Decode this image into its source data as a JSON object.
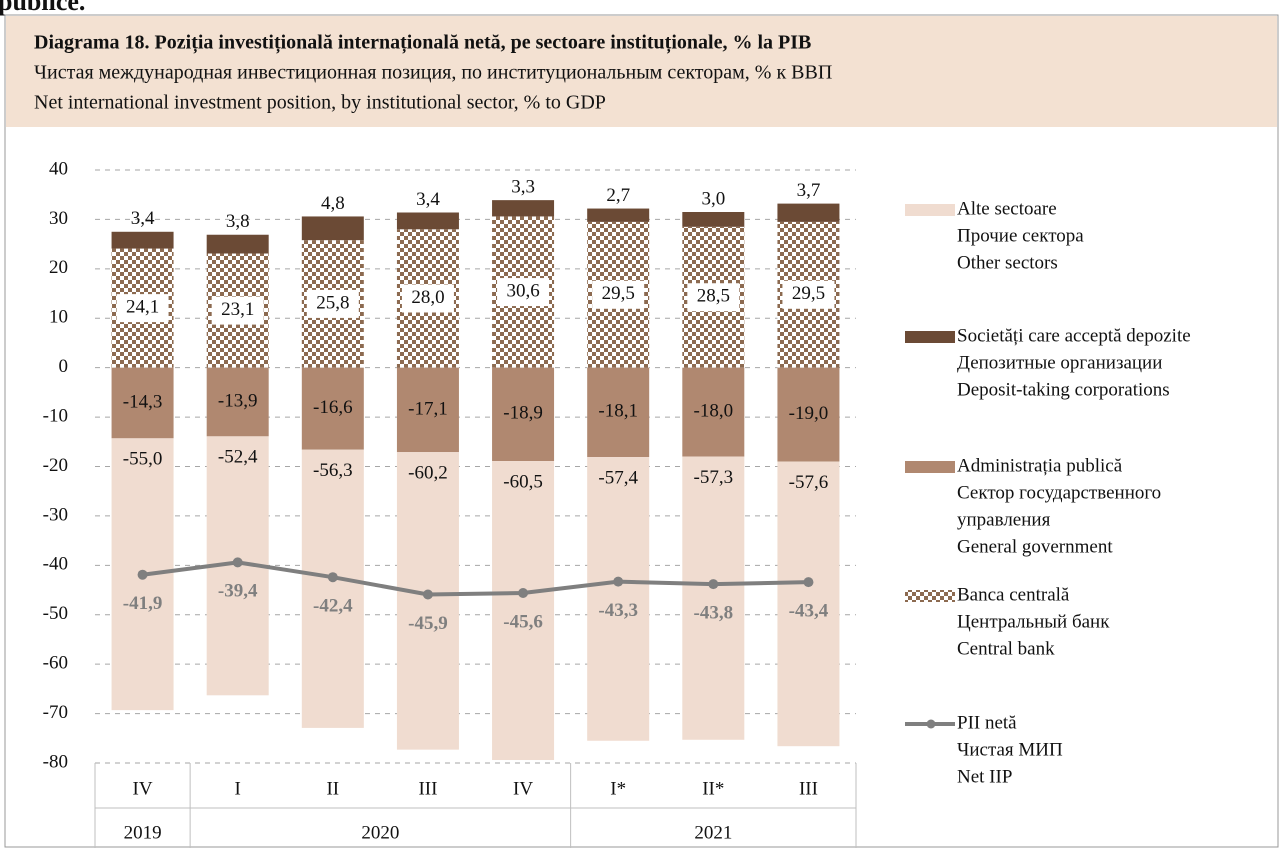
{
  "page_top_text": "publice.",
  "chart_data": {
    "type": "bar",
    "title": "Diagrama 18. Poziția investițională internațională netă, pe sectoare instituționale, % la PIB",
    "subtitle_ru": "Чистая международная инвестиционная позиция, по институциональным секторам, % к ВВП",
    "subtitle_en": "Net international investment position, by institutional sector, % to GDP",
    "categories": [
      "IV",
      "I",
      "II",
      "III",
      "IV",
      "I*",
      "II*",
      "III"
    ],
    "years": [
      "2019",
      "2020",
      null,
      null,
      null,
      "2021",
      null,
      null
    ],
    "ylim": [
      -80,
      40
    ],
    "yticks": [
      40,
      30,
      20,
      10,
      0,
      -10,
      -20,
      -30,
      -40,
      -50,
      -60,
      -70,
      -80
    ],
    "grid": true,
    "legend": "right",
    "series": [
      {
        "name": [
          "Alte sectoare",
          "Прочие сектора",
          "Other sectors"
        ],
        "color": "#f0dcd0",
        "values": [
          -55.0,
          -52.4,
          -56.3,
          -60.2,
          -60.5,
          -57.4,
          -57.3,
          -57.6
        ],
        "value_labels": [
          "-55,0",
          "-52,4",
          "-56,3",
          "-60,2",
          "-60,5",
          "-57,4",
          "-57,3",
          "-57,6"
        ]
      },
      {
        "name": [
          "Societăți care acceptă depozite",
          "Депозитные организации",
          "Deposit-taking corporations"
        ],
        "color": "#6b4a35",
        "values": [
          3.4,
          3.8,
          4.8,
          3.4,
          3.3,
          2.7,
          3.0,
          3.7
        ],
        "value_labels": [
          "3,4",
          "3,8",
          "4,8",
          "3,4",
          "3,3",
          "2,7",
          "3,0",
          "3,7"
        ]
      },
      {
        "name": [
          "Administrația publică",
          "Сектор государственного",
          "управления",
          "General government"
        ],
        "color": "#b08870",
        "values": [
          -14.3,
          -13.9,
          -16.6,
          -17.1,
          -18.9,
          -18.1,
          -18.0,
          -19.0
        ],
        "value_labels": [
          "-14,3",
          "-13,9",
          "-16,6",
          "-17,1",
          "-18,9",
          "-18,1",
          "-18,0",
          "-19,0"
        ]
      },
      {
        "name": [
          "Banca centrală",
          "Центральный банк",
          "Central bank"
        ],
        "color": "#8c6a50",
        "pattern": "checker",
        "values": [
          24.1,
          23.1,
          25.8,
          28.0,
          30.6,
          29.5,
          28.5,
          29.5
        ],
        "value_labels": [
          "24,1",
          "23,1",
          "25,8",
          "28,0",
          "30,6",
          "29,5",
          "28,5",
          "29,5"
        ]
      },
      {
        "name": [
          "PII netă",
          "Чистая МИП",
          "Net IIP"
        ],
        "color": "#7f7f7f",
        "type": "line",
        "values": [
          -41.9,
          -39.4,
          -42.4,
          -45.9,
          -45.6,
          -43.3,
          -43.8,
          -43.4
        ],
        "value_labels": [
          "-41,9",
          "-39,4",
          "-42,4",
          "-45,9",
          "-45,6",
          "-43,3",
          "-43,8",
          "-43,4"
        ]
      }
    ]
  }
}
